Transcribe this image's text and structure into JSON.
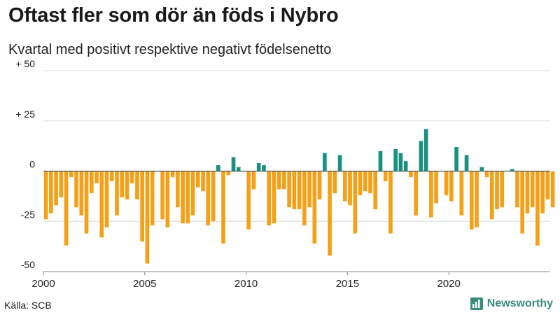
{
  "chart_data": {
    "type": "bar",
    "title": "Oftast fler som dör än föds i Nybro",
    "subtitle": "Kvartal med positivt respektive negativt födelsenetto",
    "source": "Källa: SCB",
    "brand": "Newsworthy",
    "x_start": 2000.0,
    "x_step": 0.25,
    "xlim": [
      2000,
      2025
    ],
    "ylim": [
      -50,
      50
    ],
    "y_ticks": [
      {
        "value": 50,
        "label": "+ 50"
      },
      {
        "value": 25,
        "label": "+ 25"
      },
      {
        "value": 0,
        "label": "0"
      },
      {
        "value": -25,
        "label": "-25"
      },
      {
        "value": -50,
        "label": "-50"
      }
    ],
    "x_ticks": [
      {
        "value": 2000,
        "label": "2000"
      },
      {
        "value": 2005,
        "label": "2005"
      },
      {
        "value": 2010,
        "label": "2010"
      },
      {
        "value": 2015,
        "label": "2015"
      },
      {
        "value": 2020,
        "label": "2020"
      }
    ],
    "colors": {
      "positive": "#1a9080",
      "negative": "#f5a016",
      "grid": "#dcdcdc",
      "zero": "#555555"
    },
    "values": [
      -24,
      -21,
      -17,
      -13,
      -37,
      -3,
      -18,
      -22,
      -31,
      -11,
      -6,
      -33,
      -28,
      -5,
      -22,
      -13,
      -14,
      -6,
      -14,
      -35,
      -46,
      -27,
      0,
      -24,
      -28,
      -3,
      -18,
      -26,
      -26,
      -22,
      -8,
      -10,
      -27,
      -25,
      3,
      -36,
      -2,
      7,
      2,
      0,
      -29,
      -9,
      4,
      3,
      -27,
      -26,
      -9,
      -9,
      -18,
      -19,
      -19,
      -27,
      -18,
      -36,
      -14,
      9,
      -42,
      -11,
      8,
      -15,
      -17,
      -31,
      -12,
      -10,
      -11,
      -19,
      10,
      -5,
      -31,
      11,
      9,
      5,
      -3,
      -22,
      15,
      21,
      -23,
      -16,
      0,
      -12,
      -15,
      12,
      -22,
      8,
      -29,
      -28,
      2,
      -3,
      -24,
      -19,
      -18,
      0,
      1,
      -18,
      -31,
      -21,
      -18,
      -37,
      -21,
      -14,
      -18
    ]
  }
}
